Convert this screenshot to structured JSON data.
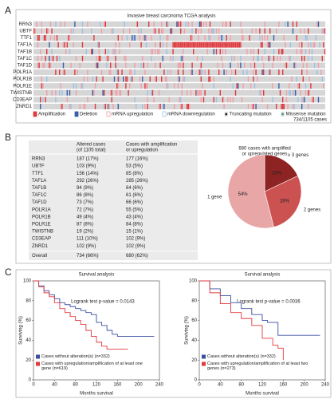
{
  "panel_labels": [
    "A",
    "B",
    "C"
  ],
  "oncoprint": {
    "title": "Invasive breast carcinoma TCGA analysis",
    "genes": [
      "RRN3",
      "UBTF",
      "TTF1",
      "TAF1A",
      "TAF1B",
      "TAF1C",
      "TAF1D",
      "POLR1A",
      "POLR1B",
      "POLR1E",
      "TWISTNB",
      "CD3EAP",
      "ZNRD1"
    ],
    "legend": [
      {
        "label": "Amplification",
        "color": "#e0393e",
        "style": "fill"
      },
      {
        "label": "Deletion",
        "color": "#3a5fa8",
        "style": "fill"
      },
      {
        "label": "mRNA upregulation",
        "color": "#f0a0a8",
        "style": "outline"
      },
      {
        "label": "mRNA downregulation",
        "color": "#9cc3e6",
        "style": "outline"
      },
      {
        "label": "Truncating mutation",
        "color": "#111111",
        "style": "dot"
      },
      {
        "label": "Missense mutation",
        "color": "#2e9a5a",
        "style": "dot"
      }
    ],
    "cases": "734/1105 cases"
  },
  "table": {
    "header": [
      [
        "Altered cases",
        "(of 1105 total)"
      ],
      [
        "Cases with amplification",
        "or upregulation"
      ]
    ],
    "rows": [
      [
        "RRN3",
        "187 (17%)",
        "177 (16%)"
      ],
      [
        "UBTF",
        "103 (9%)",
        "53 (5%)"
      ],
      [
        "TTF1",
        "156 (14%)",
        "85 (8%)"
      ],
      [
        "TAF1A",
        "292 (26%)",
        "285 (26%)"
      ],
      [
        "TAF1B",
        "94 (9%)",
        "64 (6%)"
      ],
      [
        "TAF1C",
        "86 (8%)",
        "61 (6%)"
      ],
      [
        "TAF1D",
        "73 (7%)",
        "66 (6%)"
      ],
      [
        "POLR1A",
        "72 (7%)",
        "55 (5%)"
      ],
      [
        "POLR1B",
        "49 (4%)",
        "43 (4%)"
      ],
      [
        "POLR1E",
        "87 (8%)",
        "84 (8%)"
      ],
      [
        "TWISTNB",
        "19 (2%)",
        "15 (1%)"
      ],
      [
        "CD3EAP",
        "111 (10%)",
        "102 (9%)"
      ],
      [
        "ZNRD1",
        "102 (9%)",
        "102 (9%)"
      ],
      [
        "Overall",
        "734 (66%)",
        "680 (62%)"
      ]
    ]
  },
  "chart_data": [
    {
      "type": "pie",
      "title": [
        "680 cases with amplified",
        "or upregulated genes"
      ],
      "categories": [
        "≥ 3 genes",
        "2 genes",
        "1 gene"
      ],
      "values": [
        18,
        28,
        54
      ],
      "value_labels": [
        "18%",
        "28%",
        "54%"
      ],
      "colors": [
        "#8e2323",
        "#cc5252",
        "#e9a6a6"
      ]
    },
    {
      "type": "line",
      "title": "Survival analysis",
      "annotation": "Logrank test p-value = 0.0143",
      "xlabel": "Months survival",
      "ylabel": "Surviving (%)",
      "xlim": [
        0,
        240
      ],
      "ylim": [
        0,
        100
      ],
      "xticks": [
        0,
        40,
        80,
        120,
        160,
        200,
        240
      ],
      "yticks": [
        0,
        20,
        40,
        60,
        80,
        100
      ],
      "series": [
        {
          "name": "Cases without alteration(s) (n=332)",
          "color": "#3a4fa0",
          "x": [
            0,
            10,
            20,
            30,
            40,
            50,
            60,
            70,
            80,
            90,
            100,
            110,
            120,
            130,
            140,
            150,
            160,
            230
          ],
          "values": [
            100,
            95,
            90,
            86,
            82,
            78,
            76,
            74,
            72,
            70,
            68,
            66,
            58,
            55,
            50,
            46,
            44,
            44
          ]
        },
        {
          "name": "Cases with upregulation/amplification of at least one gene (n=619)",
          "color": "#e0393e",
          "x": [
            0,
            10,
            20,
            30,
            40,
            50,
            60,
            70,
            80,
            90,
            100,
            110,
            120,
            130,
            140,
            150,
            180
          ],
          "values": [
            100,
            94,
            88,
            84,
            78,
            72,
            68,
            64,
            60,
            56,
            50,
            44,
            38,
            34,
            31,
            31,
            31
          ]
        }
      ]
    },
    {
      "type": "line",
      "title": "Survival analysis",
      "annotation": "Logrank test p-value = 0.0036",
      "xlabel": "Months survival",
      "ylabel": "Surviving (%)",
      "xlim": [
        0,
        240
      ],
      "ylim": [
        0,
        100
      ],
      "xticks": [
        0,
        40,
        80,
        120,
        160,
        200,
        240
      ],
      "yticks": [
        0,
        20,
        40,
        60,
        80,
        100
      ],
      "series": [
        {
          "name": "Cases without alteration(s) (n=332)",
          "color": "#3a4fa0",
          "x": [
            0,
            20,
            40,
            60,
            80,
            100,
            120,
            130,
            150,
            160,
            230
          ],
          "values": [
            100,
            92,
            85,
            78,
            72,
            66,
            60,
            58,
            45,
            45,
            45
          ]
        },
        {
          "name": "Cases with upregulation/amplification of at least two genes (n=273)",
          "color": "#e0393e",
          "x": [
            0,
            20,
            40,
            60,
            80,
            100,
            120,
            140,
            150,
            160
          ],
          "values": [
            100,
            88,
            77,
            68,
            62,
            55,
            42,
            35,
            32,
            20
          ]
        }
      ]
    }
  ]
}
